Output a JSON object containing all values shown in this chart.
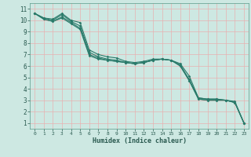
{
  "xlabel": "Humidex (Indice chaleur)",
  "xlim": [
    -0.5,
    23.5
  ],
  "ylim": [
    0.5,
    11.5
  ],
  "xticks": [
    0,
    1,
    2,
    3,
    4,
    5,
    6,
    7,
    8,
    9,
    10,
    11,
    12,
    13,
    14,
    15,
    16,
    17,
    18,
    19,
    20,
    21,
    22,
    23
  ],
  "yticks": [
    1,
    2,
    3,
    4,
    5,
    6,
    7,
    8,
    9,
    10,
    11
  ],
  "bg_color": "#cde8e2",
  "grid_color_major": "#e8b0b0",
  "grid_color_minor": "#dde8e4",
  "line_color": "#2a7a6a",
  "lines": [
    [
      10.6,
      10.2,
      10.1,
      10.6,
      10.0,
      9.8,
      7.4,
      7.0,
      6.8,
      6.7,
      6.4,
      6.3,
      6.4,
      6.6,
      6.6,
      6.5,
      6.2,
      5.1,
      3.2,
      3.1,
      3.1,
      3.0,
      2.9,
      1.0
    ],
    [
      10.6,
      10.2,
      10.0,
      10.5,
      9.9,
      9.5,
      7.2,
      6.8,
      6.6,
      6.5,
      6.3,
      6.2,
      6.3,
      6.5,
      6.6,
      6.5,
      6.1,
      4.8,
      3.2,
      3.1,
      3.1,
      3.0,
      2.8,
      1.0
    ],
    [
      10.6,
      10.1,
      9.9,
      10.3,
      9.8,
      9.3,
      7.0,
      6.7,
      6.5,
      6.4,
      6.3,
      6.2,
      6.3,
      6.5,
      6.6,
      6.5,
      6.0,
      4.7,
      3.1,
      3.0,
      3.0,
      3.0,
      2.8,
      1.0
    ],
    [
      10.6,
      10.1,
      9.9,
      10.2,
      9.7,
      9.2,
      6.9,
      6.6,
      6.5,
      6.4,
      6.3,
      6.2,
      6.3,
      6.5,
      6.6,
      6.5,
      6.0,
      4.7,
      3.1,
      3.0,
      3.0,
      3.0,
      2.8,
      1.0
    ]
  ]
}
